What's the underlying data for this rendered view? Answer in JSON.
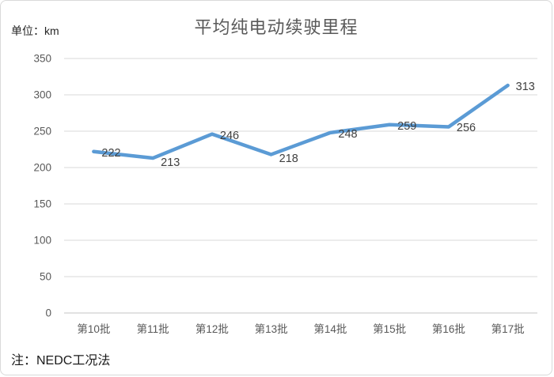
{
  "title": "平均纯电动续驶里程",
  "unit_label": "单位：km",
  "note": "注：NEDC工况法",
  "chart_data": {
    "type": "line",
    "title": "平均纯电动续驶里程",
    "categories": [
      "第10批",
      "第11批",
      "第12批",
      "第13批",
      "第14批",
      "第15批",
      "第16批",
      "第17批"
    ],
    "values": [
      222,
      213,
      246,
      218,
      248,
      259,
      256,
      313
    ],
    "xlabel": "",
    "ylabel": "单位：km",
    "ylim": [
      0,
      350
    ],
    "y_ticks": [
      0,
      50,
      100,
      150,
      200,
      250,
      300,
      350
    ],
    "data_labels": true,
    "grid": true,
    "legend_position": "none",
    "line_color": "#5B9BD5",
    "gridline_color": "#D9D9D9",
    "axis_line_color": "#C6C6C6",
    "tick_label_color": "#595959",
    "data_label_color": "#404040",
    "title_color": "#595959"
  }
}
